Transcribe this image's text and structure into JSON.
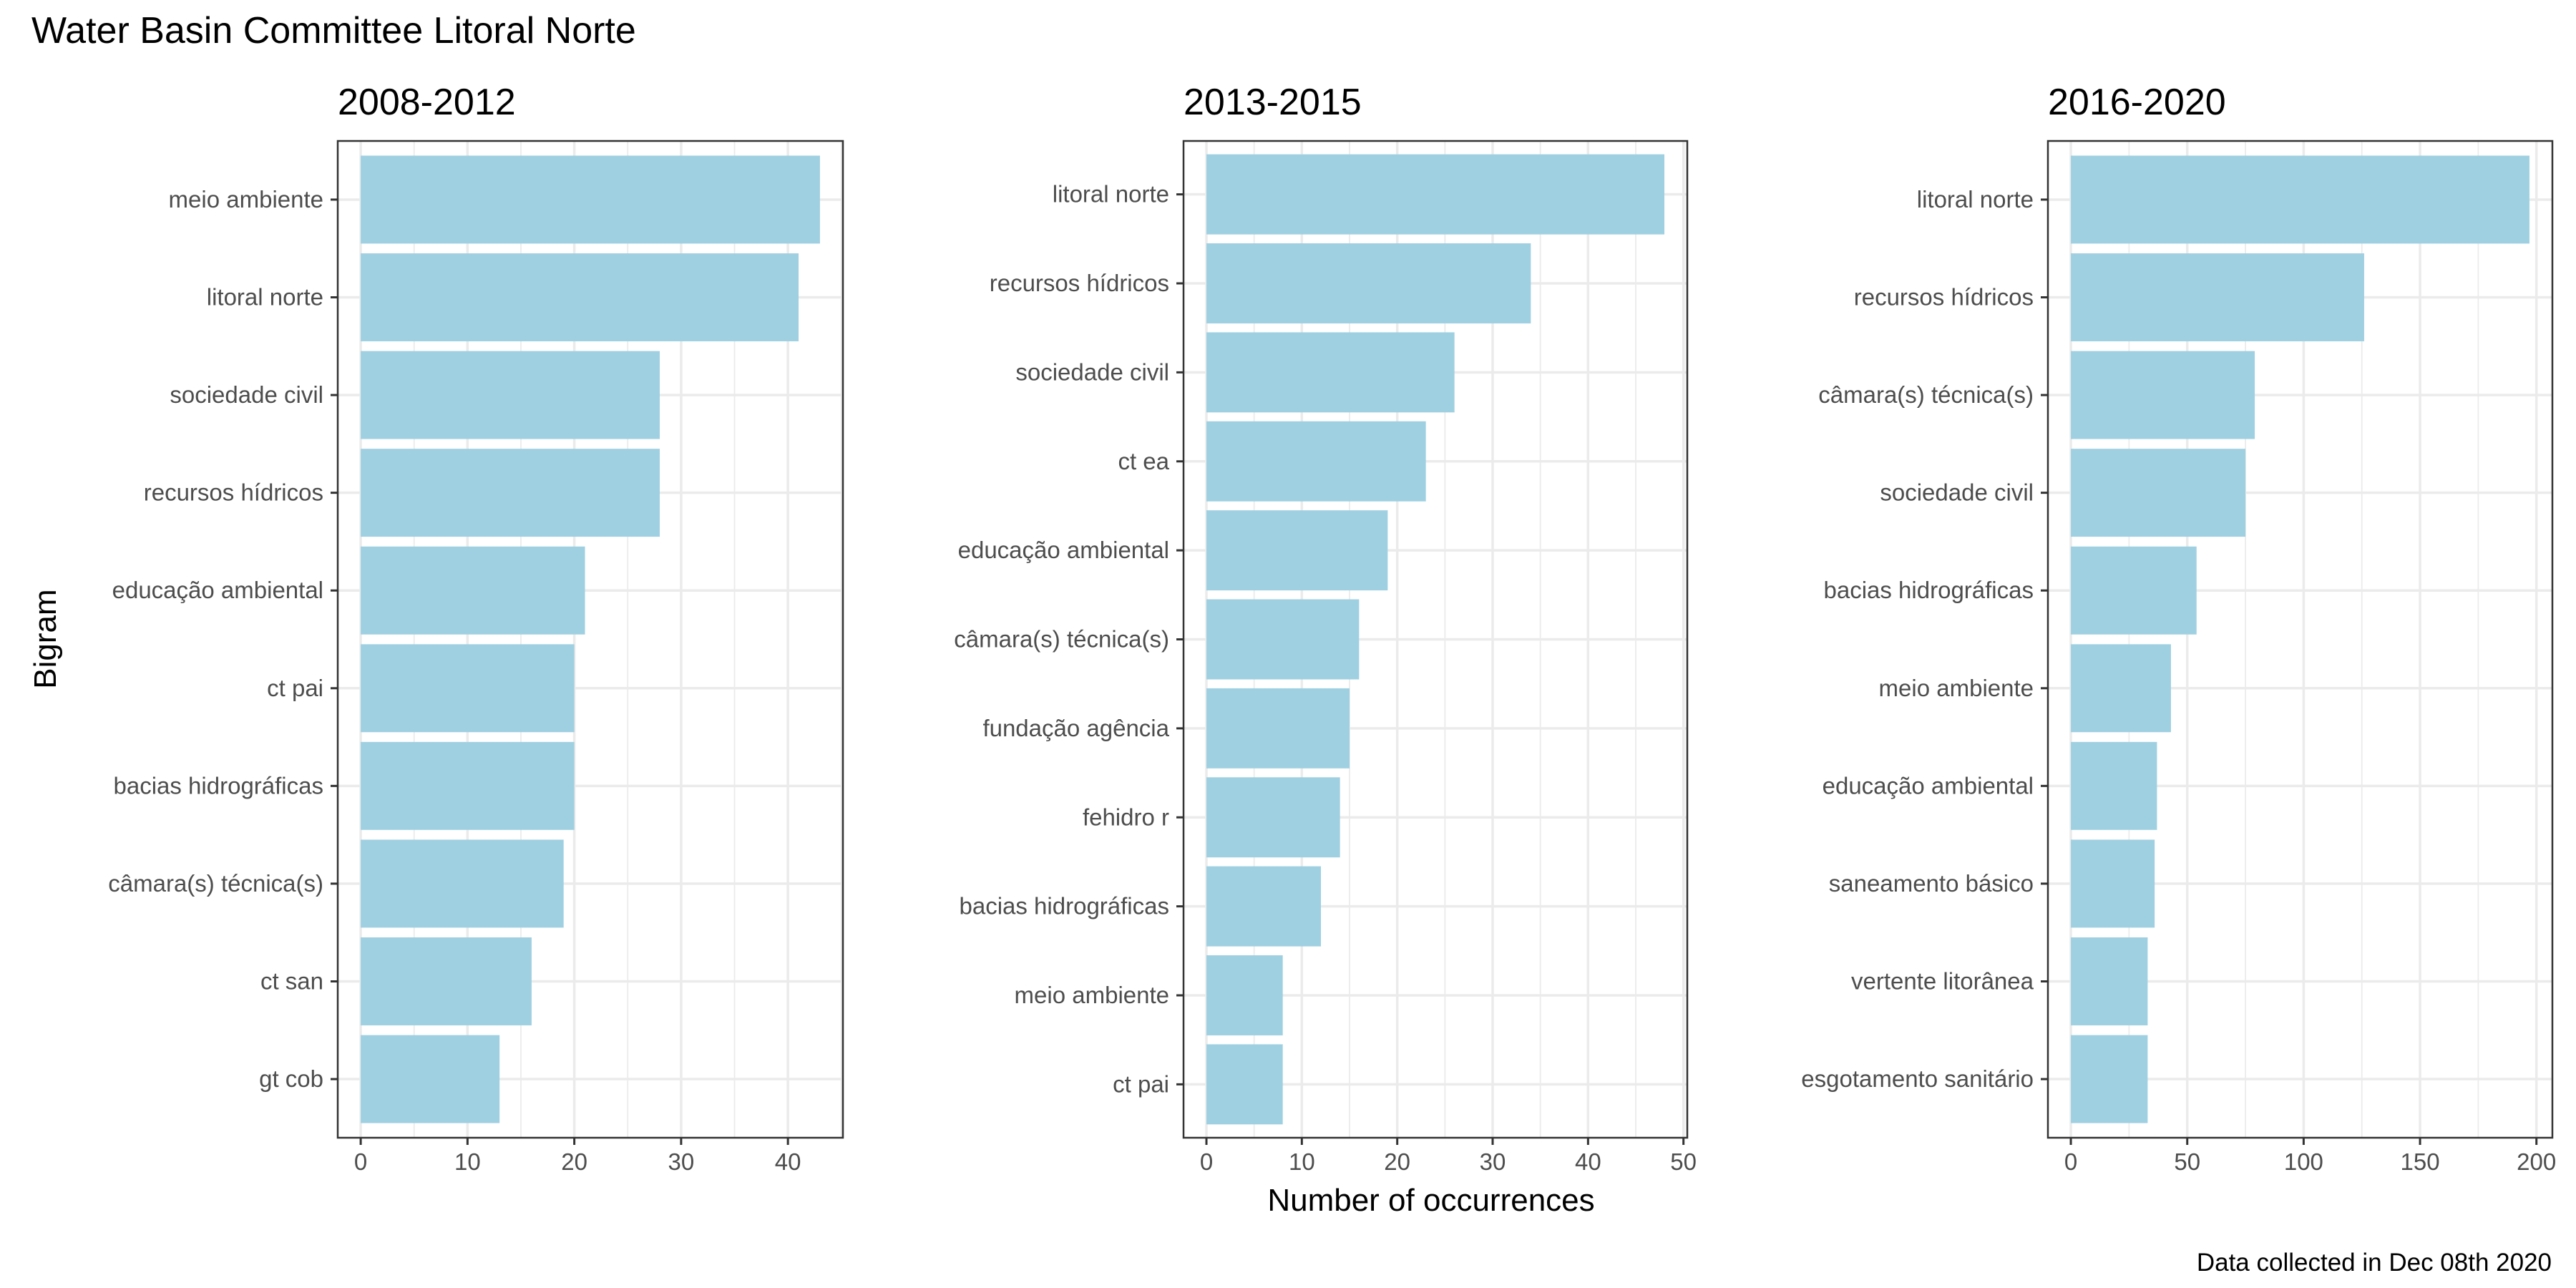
{
  "title": "Water Basin Committee Litoral Norte",
  "caption": "Data collected in Dec 08th 2020",
  "ylabel": "Bigram",
  "xlabel": "Number of occurrences",
  "colors": {
    "bar": "#9fd0e1",
    "grid": "#ebebeb",
    "frame": "#333333"
  },
  "chart_data": [
    {
      "type": "bar",
      "orientation": "horizontal",
      "title": "2008-2012",
      "categories": [
        "meio ambiente",
        "litoral norte",
        "sociedade civil",
        "recursos hídricos",
        "educação ambiental",
        "ct pai",
        "bacias hidrográficas",
        "câmara(s) técnica(s)",
        "ct san",
        "gt cob"
      ],
      "values": [
        43,
        41,
        28,
        28,
        21,
        20,
        20,
        19,
        16,
        13
      ],
      "xlim": [
        -2.15,
        45.15
      ],
      "xticks": [
        0,
        10,
        20,
        30,
        40
      ]
    },
    {
      "type": "bar",
      "orientation": "horizontal",
      "title": "2013-2015",
      "categories": [
        "litoral norte",
        "recursos hídricos",
        "sociedade civil",
        "ct ea",
        "educação ambiental",
        "câmara(s) técnica(s)",
        "fundação agência",
        "fehidro r",
        "bacias hidrográficas",
        "meio ambiente",
        "ct pai"
      ],
      "values": [
        48,
        34,
        26,
        23,
        19,
        16,
        15,
        14,
        12,
        8,
        8
      ],
      "xlim": [
        -2.4,
        50.4
      ],
      "xticks": [
        0,
        10,
        20,
        30,
        40,
        50
      ]
    },
    {
      "type": "bar",
      "orientation": "horizontal",
      "title": "2016-2020",
      "categories": [
        "litoral norte",
        "recursos hídricos",
        "câmara(s) técnica(s)",
        "sociedade civil",
        "bacias hidrográficas",
        "meio ambiente",
        "educação ambiental",
        "saneamento básico",
        "vertente litorânea",
        "esgotamento sanitário"
      ],
      "values": [
        197,
        126,
        79,
        75,
        54,
        43,
        37,
        36,
        33,
        33
      ],
      "xlim": [
        -9.85,
        206.85
      ],
      "xticks": [
        0,
        50,
        100,
        150,
        200
      ]
    }
  ]
}
